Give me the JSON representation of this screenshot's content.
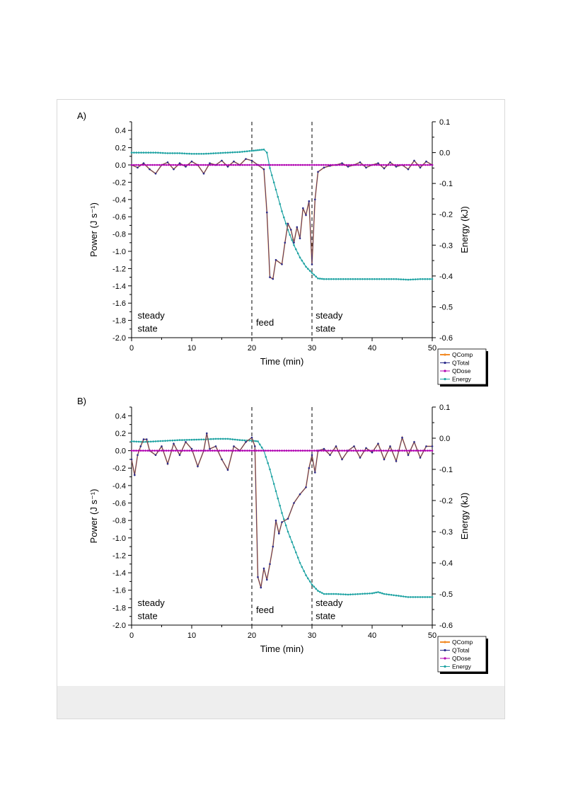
{
  "chart_data": [
    {
      "type": "line",
      "panel_label": "A)",
      "xlabel": "Time (min)",
      "ylabel_left": "Power (J s⁻¹)",
      "ylabel_right": "Energy (kJ)",
      "xlim": [
        0,
        50
      ],
      "ylim_left": [
        -2.0,
        0.5
      ],
      "ylim_right": [
        -0.6,
        0.1
      ],
      "xticks": [
        "0",
        "10",
        "20",
        "30",
        "40",
        "50"
      ],
      "yticks_left": [
        "0.4",
        "0.2",
        "0.0",
        "-0.2",
        "-0.4",
        "-0.6",
        "-0.8",
        "-1.0",
        "-1.2",
        "-1.4",
        "-1.6",
        "-1.8",
        "-2.0"
      ],
      "yticks_right": [
        "0.1",
        "0.0",
        "-0.1",
        "-0.2",
        "-0.3",
        "-0.4",
        "-0.5",
        "-0.6"
      ],
      "vlines": [
        20,
        30
      ],
      "annotations": [
        {
          "text": "steady",
          "x": 1,
          "y": -1.78
        },
        {
          "text": "state",
          "x": 1,
          "y": -1.93
        },
        {
          "text": "feed",
          "x": 20.7,
          "y": -1.86
        },
        {
          "text": "steady",
          "x": 30.6,
          "y": -1.78
        },
        {
          "text": "state",
          "x": 30.6,
          "y": -1.93
        }
      ],
      "legend": [
        "QComp",
        "QTotal",
        "QDose",
        "Energy"
      ],
      "legend_position": "bottom-right, outside",
      "series": [
        {
          "name": "QComp",
          "axis": "left",
          "color": "#f28c28",
          "x": [
            0,
            1,
            2,
            3,
            4,
            5,
            6,
            7,
            8,
            9,
            10,
            11,
            12,
            13,
            14,
            15,
            16,
            17,
            18,
            19,
            20,
            21,
            22,
            22.5,
            23,
            23.5,
            24,
            25,
            25.5,
            26,
            26.5,
            27,
            27.5,
            28,
            28.5,
            29,
            29.5,
            30,
            30.5,
            31,
            32,
            33,
            34,
            35,
            36,
            37,
            38,
            39,
            40,
            41,
            42,
            43,
            44,
            45,
            46,
            47,
            48,
            49,
            50
          ],
          "y": [
            0.0,
            -0.03,
            0.02,
            -0.05,
            -0.1,
            0.0,
            0.03,
            -0.05,
            0.02,
            -0.02,
            0.04,
            0.0,
            -0.1,
            0.02,
            0.0,
            0.05,
            -0.02,
            0.04,
            0.0,
            0.07,
            0.05,
            0.0,
            -0.05,
            -0.55,
            -1.3,
            -1.32,
            -1.1,
            -1.15,
            -0.9,
            -0.68,
            -0.75,
            -0.9,
            -0.72,
            -0.85,
            -0.5,
            -0.58,
            -0.42,
            -1.15,
            -0.4,
            -0.08,
            -0.03,
            -0.01,
            0.0,
            0.02,
            -0.02,
            0.0,
            0.03,
            -0.03,
            0.0,
            0.02,
            -0.04,
            0.03,
            -0.02,
            0.0,
            -0.05,
            0.05,
            -0.03,
            0.04,
            0.0
          ]
        },
        {
          "name": "QTotal",
          "axis": "left",
          "color": "#2a2a8a",
          "x": [
            0,
            1,
            2,
            3,
            4,
            5,
            6,
            7,
            8,
            9,
            10,
            11,
            12,
            13,
            14,
            15,
            16,
            17,
            18,
            19,
            20,
            21,
            22,
            22.5,
            23,
            23.5,
            24,
            25,
            25.5,
            26,
            26.5,
            27,
            27.5,
            28,
            28.5,
            29,
            29.5,
            30,
            30.5,
            31,
            32,
            33,
            34,
            35,
            36,
            37,
            38,
            39,
            40,
            41,
            42,
            43,
            44,
            45,
            46,
            47,
            48,
            49,
            50
          ],
          "y": [
            0.0,
            -0.03,
            0.02,
            -0.05,
            -0.1,
            0.0,
            0.03,
            -0.05,
            0.02,
            -0.02,
            0.04,
            0.0,
            -0.1,
            0.02,
            0.0,
            0.05,
            -0.02,
            0.04,
            0.0,
            0.07,
            0.05,
            0.0,
            -0.05,
            -0.55,
            -1.3,
            -1.32,
            -1.1,
            -1.15,
            -0.9,
            -0.68,
            -0.75,
            -0.9,
            -0.72,
            -0.85,
            -0.5,
            -0.58,
            -0.42,
            -1.15,
            -0.4,
            -0.08,
            -0.03,
            -0.01,
            0.0,
            0.02,
            -0.02,
            0.0,
            0.03,
            -0.03,
            0.0,
            0.02,
            -0.04,
            0.03,
            -0.02,
            0.0,
            -0.05,
            0.05,
            -0.03,
            0.04,
            0.0
          ]
        },
        {
          "name": "QDose",
          "axis": "left",
          "color": "#b000b0",
          "x": [
            0,
            5,
            10,
            15,
            20,
            25,
            30,
            35,
            40,
            45,
            50
          ],
          "y": [
            0.0,
            0.0,
            0.0,
            0.0,
            0.0,
            0.0,
            0.0,
            0.0,
            0.0,
            0.0,
            0.0
          ]
        },
        {
          "name": "Energy",
          "axis": "right",
          "color": "#1fa3a3",
          "x": [
            0,
            2,
            4,
            6,
            8,
            10,
            12,
            14,
            16,
            18,
            20,
            21,
            22,
            22.5,
            23,
            24,
            25,
            26,
            27,
            28,
            29,
            30,
            31,
            32,
            34,
            36,
            38,
            40,
            42,
            44,
            46,
            48,
            50
          ],
          "y": [
            0.0,
            0.0,
            0.0,
            -0.002,
            -0.002,
            -0.004,
            -0.004,
            -0.002,
            0.0,
            0.002,
            0.006,
            0.008,
            0.01,
            0.0,
            -0.05,
            -0.12,
            -0.19,
            -0.25,
            -0.3,
            -0.34,
            -0.37,
            -0.39,
            -0.408,
            -0.41,
            -0.41,
            -0.41,
            -0.41,
            -0.41,
            -0.41,
            -0.41,
            -0.412,
            -0.41,
            -0.41
          ]
        }
      ]
    },
    {
      "type": "line",
      "panel_label": "B)",
      "xlabel": "Time (min)",
      "ylabel_left": "Power (J s⁻¹)",
      "ylabel_right": "Energy (kJ)",
      "xlim": [
        0,
        50
      ],
      "ylim_left": [
        -2.0,
        0.5
      ],
      "ylim_right": [
        -0.6,
        0.1
      ],
      "xticks": [
        "0",
        "10",
        "20",
        "30",
        "40",
        "50"
      ],
      "yticks_left": [
        "0.4",
        "0.2",
        "0.0",
        "-0.2",
        "-0.4",
        "-0.6",
        "-0.8",
        "-1.0",
        "-1.2",
        "-1.4",
        "-1.6",
        "-1.8",
        "-2.0"
      ],
      "yticks_right": [
        "0.1",
        "0.0",
        "-0.1",
        "-0.2",
        "-0.3",
        "-0.4",
        "-0.5",
        "-0.6"
      ],
      "vlines": [
        20,
        30
      ],
      "annotations": [
        {
          "text": "steady",
          "x": 1,
          "y": -1.78
        },
        {
          "text": "state",
          "x": 1,
          "y": -1.93
        },
        {
          "text": "feed",
          "x": 20.7,
          "y": -1.86
        },
        {
          "text": "steady",
          "x": 30.6,
          "y": -1.78
        },
        {
          "text": "state",
          "x": 30.6,
          "y": -1.93
        }
      ],
      "legend": [
        "QComp",
        "QTotal",
        "QDose",
        "Energy"
      ],
      "legend_position": "bottom-right, outside",
      "series": [
        {
          "name": "QComp",
          "axis": "left",
          "color": "#f28c28",
          "x": [
            0,
            0.5,
            1,
            1.5,
            2,
            2.5,
            3,
            4,
            5,
            6,
            7,
            8,
            9,
            10,
            11,
            12,
            12.5,
            13,
            14,
            15,
            16,
            17,
            18,
            19,
            20,
            20.5,
            21,
            21.5,
            22,
            22.5,
            23,
            23.5,
            24,
            24.5,
            25,
            26,
            27,
            28,
            29,
            29.5,
            30,
            30.5,
            31,
            32,
            33,
            34,
            35,
            36,
            37,
            38,
            39,
            40,
            41,
            42,
            43,
            44,
            45,
            46,
            47,
            48,
            49,
            50
          ],
          "y": [
            -0.1,
            -0.28,
            -0.05,
            0.05,
            0.13,
            0.13,
            0.0,
            -0.05,
            0.05,
            -0.15,
            0.08,
            -0.05,
            0.1,
            0.02,
            -0.18,
            0.0,
            0.2,
            0.02,
            0.05,
            -0.1,
            -0.22,
            0.05,
            0.0,
            0.1,
            0.15,
            0.05,
            -1.45,
            -1.57,
            -1.35,
            -1.48,
            -1.3,
            -1.1,
            -0.8,
            -0.95,
            -0.82,
            -0.78,
            -0.6,
            -0.5,
            -0.42,
            -0.2,
            -0.05,
            -0.25,
            0.0,
            0.02,
            -0.05,
            0.05,
            -0.1,
            0.0,
            0.05,
            -0.08,
            0.03,
            -0.02,
            0.08,
            -0.1,
            0.05,
            -0.12,
            0.15,
            -0.05,
            0.1,
            -0.08,
            0.05,
            0.05
          ]
        },
        {
          "name": "QTotal",
          "axis": "left",
          "color": "#2a2a8a",
          "x": [
            0,
            0.5,
            1,
            1.5,
            2,
            2.5,
            3,
            4,
            5,
            6,
            7,
            8,
            9,
            10,
            11,
            12,
            12.5,
            13,
            14,
            15,
            16,
            17,
            18,
            19,
            20,
            20.5,
            21,
            21.5,
            22,
            22.5,
            23,
            23.5,
            24,
            24.5,
            25,
            26,
            27,
            28,
            29,
            29.5,
            30,
            30.5,
            31,
            32,
            33,
            34,
            35,
            36,
            37,
            38,
            39,
            40,
            41,
            42,
            43,
            44,
            45,
            46,
            47,
            48,
            49,
            50
          ],
          "y": [
            -0.1,
            -0.28,
            -0.05,
            0.05,
            0.13,
            0.13,
            0.0,
            -0.05,
            0.05,
            -0.15,
            0.08,
            -0.05,
            0.1,
            0.02,
            -0.18,
            0.0,
            0.2,
            0.02,
            0.05,
            -0.1,
            -0.22,
            0.05,
            0.0,
            0.1,
            0.15,
            0.05,
            -1.45,
            -1.57,
            -1.35,
            -1.48,
            -1.3,
            -1.1,
            -0.8,
            -0.95,
            -0.82,
            -0.78,
            -0.6,
            -0.5,
            -0.42,
            -0.2,
            -0.05,
            -0.25,
            0.0,
            0.02,
            -0.05,
            0.05,
            -0.1,
            0.0,
            0.05,
            -0.08,
            0.03,
            -0.02,
            0.08,
            -0.1,
            0.05,
            -0.12,
            0.15,
            -0.05,
            0.1,
            -0.08,
            0.05,
            0.05
          ]
        },
        {
          "name": "QDose",
          "axis": "left",
          "color": "#b000b0",
          "x": [
            0,
            5,
            10,
            15,
            20,
            25,
            30,
            35,
            40,
            45,
            50
          ],
          "y": [
            0.0,
            0.0,
            0.0,
            0.0,
            0.0,
            0.0,
            0.0,
            0.0,
            0.0,
            0.0,
            0.0
          ]
        },
        {
          "name": "Energy",
          "axis": "right",
          "color": "#1fa3a3",
          "x": [
            0,
            2,
            4,
            6,
            8,
            10,
            12,
            14,
            16,
            18,
            20,
            21,
            22,
            23,
            24,
            25,
            26,
            27,
            28,
            29,
            30,
            31,
            32,
            34,
            36,
            38,
            40,
            41,
            42,
            44,
            46,
            48,
            50
          ],
          "y": [
            -0.01,
            -0.012,
            -0.01,
            -0.008,
            -0.006,
            -0.005,
            -0.004,
            -0.002,
            -0.002,
            -0.006,
            -0.008,
            -0.01,
            -0.04,
            -0.1,
            -0.17,
            -0.24,
            -0.3,
            -0.35,
            -0.4,
            -0.44,
            -0.47,
            -0.49,
            -0.5,
            -0.5,
            -0.502,
            -0.5,
            -0.498,
            -0.494,
            -0.5,
            -0.505,
            -0.51,
            -0.51,
            -0.51
          ]
        }
      ]
    }
  ]
}
